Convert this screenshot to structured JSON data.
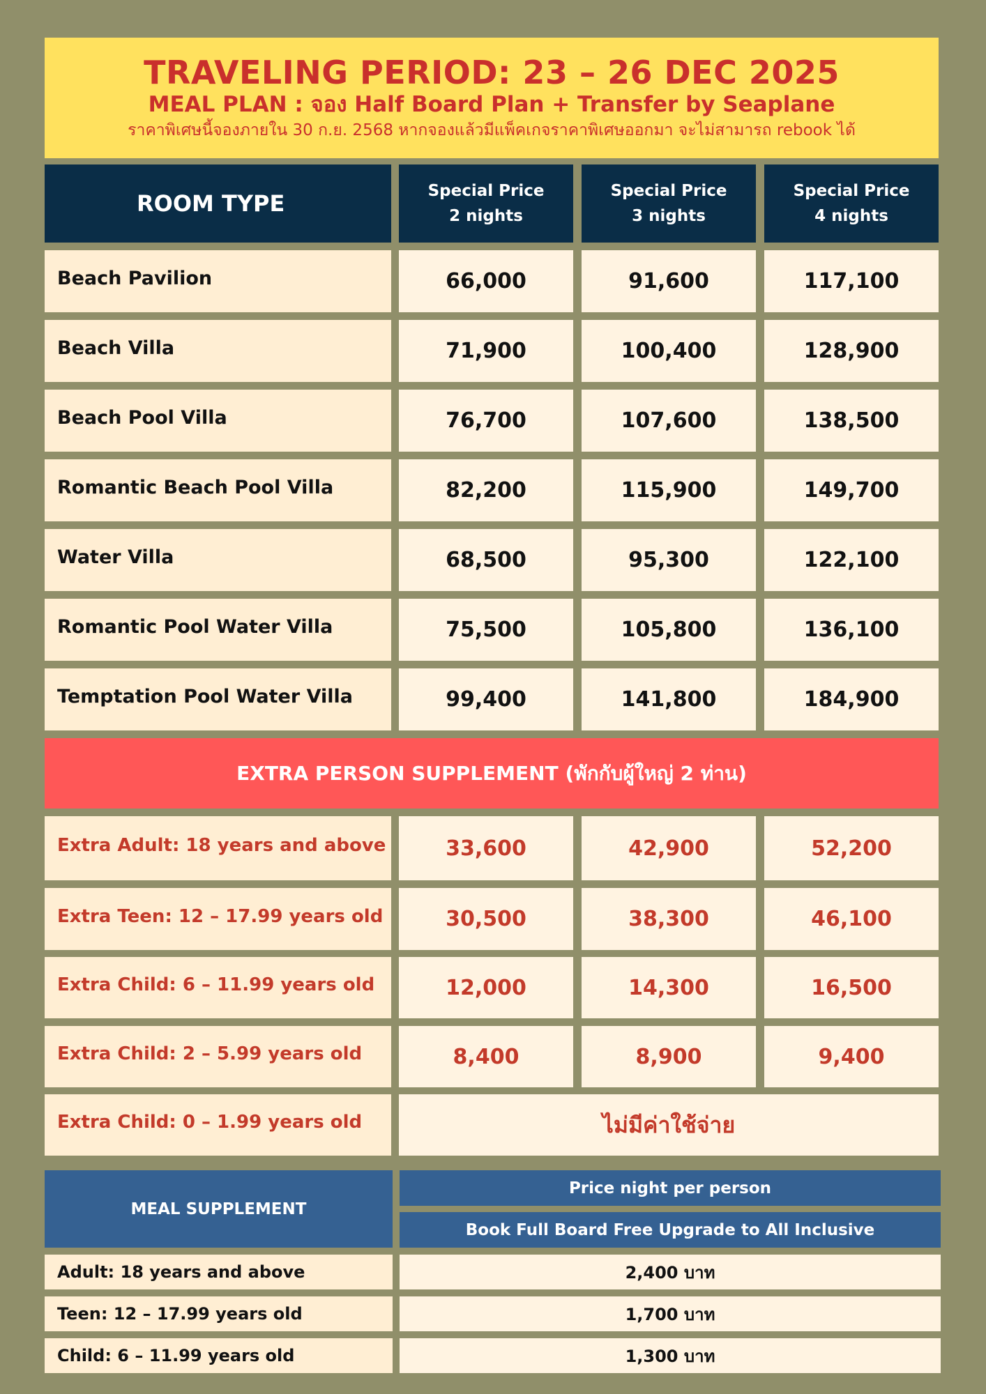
{
  "header": {
    "title": "TRAVELING PERIOD:  23 – 26 DEC 2025",
    "meal_plan": "MEAL PLAN : จอง Half Board Plan + Transfer by Seaplane",
    "note": "ราคาพิเศษนี้จองภายใน 30 ก.ย. 2568 หากจองแล้วมีแพ็คเกจราคาพิเศษออกมา จะไม่สามารถ rebook ได้"
  },
  "columns": {
    "room_type": "ROOM TYPE",
    "c2": {
      "line1": "Special Price",
      "line2": "2 nights"
    },
    "c3": {
      "line1": "Special Price",
      "line2": "3 nights"
    },
    "c4": {
      "line1": "Special Price",
      "line2": "4 nights"
    }
  },
  "rooms": [
    {
      "name": "Beach Pavilion",
      "p2": "66,000",
      "p3": "91,600",
      "p4": "117,100"
    },
    {
      "name": "Beach Villa",
      "p2": "71,900",
      "p3": "100,400",
      "p4": "128,900"
    },
    {
      "name": "Beach Pool Villa",
      "p2": "76,700",
      "p3": "107,600",
      "p4": "138,500"
    },
    {
      "name": "Romantic Beach Pool Villa",
      "p2": "82,200",
      "p3": "115,900",
      "p4": "149,700"
    },
    {
      "name": "Water Villa",
      "p2": "68,500",
      "p3": "95,300",
      "p4": "122,100"
    },
    {
      "name": "Romantic Pool Water Villa",
      "p2": "75,500",
      "p3": "105,800",
      "p4": "136,100"
    },
    {
      "name": "Temptation Pool Water Villa",
      "p2": "99,400",
      "p3": "141,800",
      "p4": "184,900"
    }
  ],
  "extra": {
    "title": "EXTRA PERSON SUPPLEMENT (พักกับผู้ใหญ่ 2 ท่าน)",
    "rows": [
      {
        "label": "Extra Adult:  18 years and above",
        "p2": "33,600",
        "p3": "42,900",
        "p4": "52,200"
      },
      {
        "label": "Extra Teen:  12 – 17.99 years old",
        "p2": "30,500",
        "p3": "38,300",
        "p4": "46,100"
      },
      {
        "label": "Extra Child:  6 – 11.99 years old",
        "p2": "12,000",
        "p3": "14,300",
        "p4": "16,500"
      },
      {
        "label": "Extra Child:  2 – 5.99 years old",
        "p2": "8,400",
        "p3": "8,900",
        "p4": "9,400"
      }
    ],
    "infant": {
      "label": "Extra Child:  0 – 1.99 years old",
      "value": "ไม่มีค่าใช้จ่าย"
    }
  },
  "meal": {
    "title": "MEAL SUPPLEMENT",
    "price_header": "Price night per person",
    "upgrade_header": "Book Full Board Free Upgrade to All Inclusive",
    "rows": [
      {
        "label": "Adult: 18 years and above",
        "value": "2,400 บาท"
      },
      {
        "label": "Teen: 12 – 17.99 years old",
        "value": "1,700 บาท"
      },
      {
        "label": "Child: 6 – 11.99 years old",
        "value": "1,300 บาท"
      }
    ]
  }
}
